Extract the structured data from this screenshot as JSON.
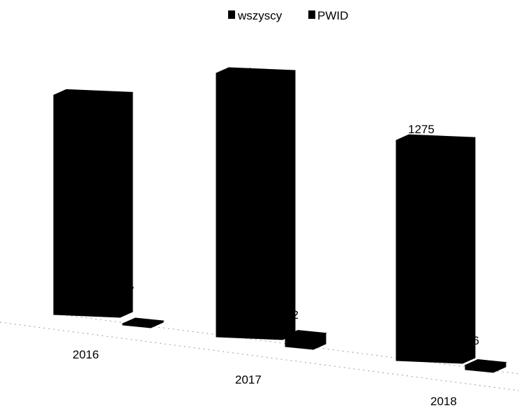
{
  "chart_data": {
    "type": "bar",
    "categories": [
      "2016",
      "2017",
      "2018"
    ],
    "series": [
      {
        "name": "wszyscy",
        "values": [
          1270,
          1526,
          1275
        ],
        "color": "#000000"
      },
      {
        "name": "PWID",
        "values": [
          7,
          62,
          26
        ],
        "color": "#000000"
      }
    ],
    "title": "",
    "xlabel": "",
    "ylabel": "",
    "legend": "top-center",
    "grid": false,
    "data_labels_visible": {
      "wszyscy": [
        "1270",
        "1526",
        "1275"
      ],
      "PWID": [
        "7",
        "62",
        "26"
      ]
    }
  }
}
